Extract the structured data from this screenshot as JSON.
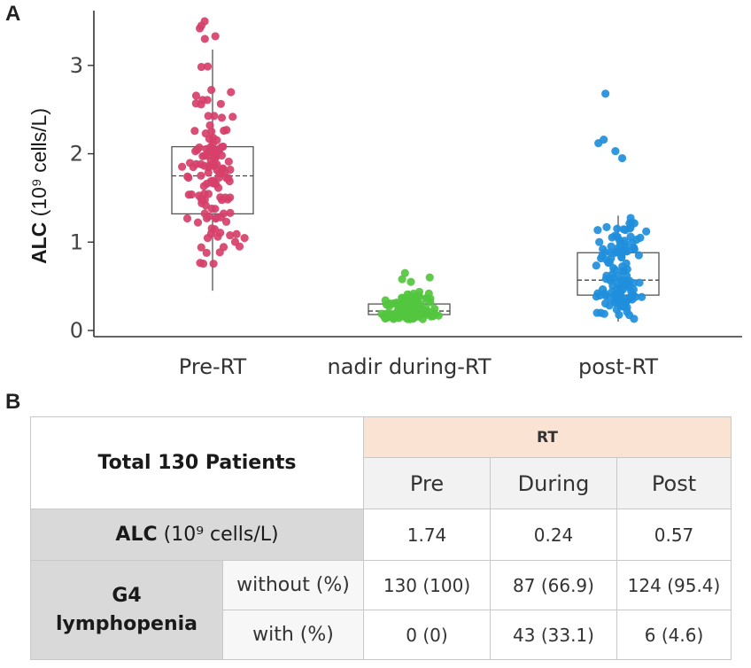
{
  "panels": {
    "a": "A",
    "b": "B"
  },
  "chart_data": {
    "type": "scatter",
    "title": "",
    "xlabel": "",
    "ylabel": "ALC (10⁹ cells/L)",
    "ylabel_bold": "ALC",
    "ylabel_rest": " (10⁹ cells/L)",
    "ylim": [
      -0.07,
      3.62
    ],
    "yticks": [
      0,
      1,
      2,
      3
    ],
    "categories": [
      "Pre-RT",
      "nadir during-RT",
      "post-RT"
    ],
    "colors": [
      "#d6406a",
      "#52c63e",
      "#1f8fdc"
    ],
    "boxplots": [
      {
        "group": "Pre-RT",
        "min": 0.45,
        "q1": 1.32,
        "median": 1.75,
        "q3": 2.08,
        "max": 3.18
      },
      {
        "group": "nadir during-RT",
        "min": 0.12,
        "q1": 0.18,
        "median": 0.22,
        "q3": 0.3,
        "max": 0.45
      },
      {
        "group": "post-RT",
        "min": 0.1,
        "q1": 0.4,
        "median": 0.57,
        "q3": 0.88,
        "max": 1.3
      }
    ],
    "outliers": [
      {
        "group": "Pre-RT",
        "values": [
          3.5,
          3.45,
          3.42,
          3.33,
          3.3
        ]
      },
      {
        "group": "nadir during-RT",
        "values": [
          0.65,
          0.6,
          0.58,
          0.55
        ]
      },
      {
        "group": "post-RT",
        "values": [
          2.68,
          2.16,
          2.12,
          2.03,
          1.95
        ]
      }
    ],
    "n_per_group": 130
  },
  "table": {
    "title": "Total 130 Patients",
    "group_header": "RT",
    "columns": [
      "Pre",
      "During",
      "Post"
    ],
    "alc_label_bold": "ALC",
    "alc_label_rest": " (10⁹ cells/L)",
    "alc_values": [
      "1.74",
      "0.24",
      "0.57"
    ],
    "g4_label_line1": "G4",
    "g4_label_line2": "lymphopenia",
    "rows": [
      {
        "label": "without (%)",
        "values": [
          "130 (100)",
          "87 (66.9)",
          "124 (95.4)"
        ]
      },
      {
        "label": "with (%)",
        "values": [
          "0 (0)",
          "43 (33.1)",
          "6 (4.6)"
        ]
      }
    ]
  }
}
